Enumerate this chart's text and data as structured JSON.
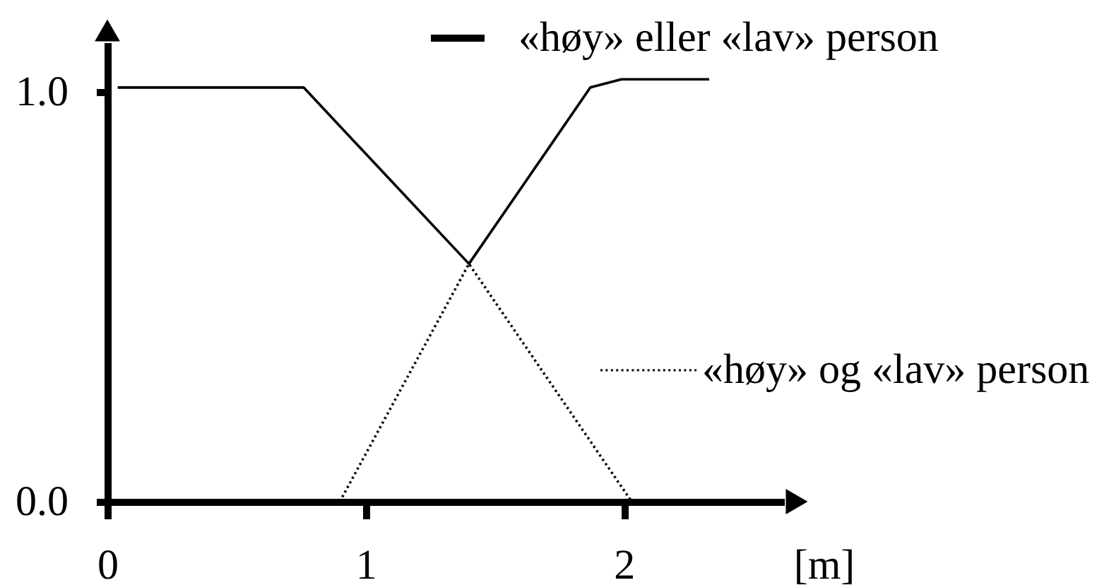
{
  "chart_data": {
    "type": "line",
    "xlabel": "[m]",
    "xlim": [
      0,
      2.62
    ],
    "ylim": [
      0,
      1.12
    ],
    "xticks": [
      0,
      1,
      2
    ],
    "yticks": [
      {
        "value": 0,
        "label": "0.0"
      },
      {
        "value": 1,
        "label": "1.0"
      }
    ],
    "grid": false,
    "legend": "top right",
    "series": [
      {
        "name": "«høy» eller «lav» person",
        "color": "#000000",
        "line_style": "solid",
        "x": [
          0.04,
          0.76,
          1.4,
          1.87,
          1.99,
          2.33
        ],
        "values": [
          1.01,
          1.01,
          0.58,
          1.01,
          1.03,
          1.03
        ]
      },
      {
        "name": "«høy» og «lav» person",
        "color": "#000000",
        "line_style": "dotted",
        "x": [
          0.9,
          1.4,
          2.03
        ],
        "values": [
          0,
          0.58,
          0
        ]
      }
    ]
  }
}
